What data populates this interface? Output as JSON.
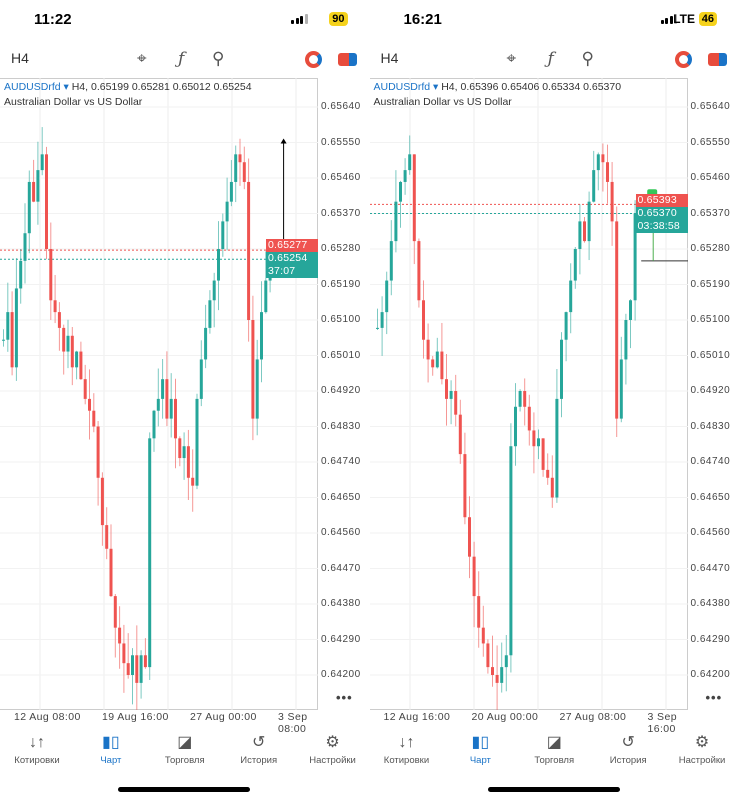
{
  "phones": [
    {
      "status": {
        "time": "11:22",
        "network": "",
        "battery": "90"
      },
      "toolbar": {
        "timeframe": "H4"
      },
      "legend": {
        "symbol": "AUDUSDrfd",
        "caret": "▾",
        "ohlc": "H4, 0.65199 0.65281 0.65012 0.65254",
        "description": "Australian Dollar vs US Dollar"
      },
      "price_axis": [
        "0.65640",
        "0.65550",
        "0.65460",
        "0.65370",
        "0.65280",
        "0.65190",
        "0.65100",
        "0.65010",
        "0.64920",
        "0.64830",
        "0.64740",
        "0.64650",
        "0.64560",
        "0.64470",
        "0.64380",
        "0.64290",
        "0.64200"
      ],
      "ask_label": "0.65277",
      "bid_label": "0.65254",
      "countdown": "37:07",
      "time_axis": [
        "12 Aug 08:00",
        "19 Aug 16:00",
        "27 Aug 00:00",
        "3 Sep 08:00"
      ],
      "more": "•••",
      "chart_data": {
        "type": "candlestick",
        "ask": 0.65277,
        "bid": 0.65254,
        "ylim": [
          0.6416,
          0.6568
        ],
        "closes": [
          0.6505,
          0.6512,
          0.6498,
          0.6518,
          0.6525,
          0.6532,
          0.6545,
          0.654,
          0.6548,
          0.6552,
          0.6528,
          0.6515,
          0.6512,
          0.6508,
          0.6502,
          0.6506,
          0.6498,
          0.6502,
          0.6495,
          0.649,
          0.6487,
          0.6483,
          0.647,
          0.6458,
          0.6452,
          0.644,
          0.6432,
          0.6428,
          0.6423,
          0.642,
          0.6425,
          0.6418,
          0.6425,
          0.6422,
          0.648,
          0.6487,
          0.649,
          0.6495,
          0.6485,
          0.649,
          0.648,
          0.6475,
          0.6478,
          0.647,
          0.6468,
          0.649,
          0.65,
          0.6508,
          0.6515,
          0.652,
          0.6528,
          0.6535,
          0.654,
          0.6545,
          0.6552,
          0.655,
          0.6545,
          0.651,
          0.6485,
          0.65,
          0.6512,
          0.652,
          0.65254
        ],
        "trade_arrow": {
          "from": 0.65254,
          "to": 0.6556
        }
      }
    },
    {
      "status": {
        "time": "16:21",
        "network": "LTE",
        "battery": "46"
      },
      "toolbar": {
        "timeframe": "H4"
      },
      "legend": {
        "symbol": "AUDUSDrfd",
        "caret": "▾",
        "ohlc": "H4, 0.65396 0.65406 0.65334 0.65370",
        "description": "Australian Dollar vs US Dollar"
      },
      "price_axis": [
        "0.65640",
        "0.65550",
        "0.65460",
        "0.65370",
        "0.65280",
        "0.65190",
        "0.65100",
        "0.65010",
        "0.64920",
        "0.64830",
        "0.64740",
        "0.64650",
        "0.64560",
        "0.64470",
        "0.64380",
        "0.64290",
        "0.64200"
      ],
      "ask_label": "0.65393",
      "bid_label": "0.65370",
      "countdown": "03:38:58",
      "time_axis": [
        "12 Aug 16:00",
        "20 Aug 00:00",
        "27 Aug 08:00",
        "3 Sep 16:00"
      ],
      "more": "•••",
      "chart_data": {
        "type": "candlestick",
        "ask": 0.65393,
        "bid": 0.6537,
        "ylim": [
          0.6416,
          0.6568
        ],
        "closes": [
          0.6508,
          0.6512,
          0.652,
          0.653,
          0.654,
          0.6545,
          0.6548,
          0.6552,
          0.653,
          0.6515,
          0.6505,
          0.65,
          0.6498,
          0.6502,
          0.6495,
          0.649,
          0.6492,
          0.6486,
          0.6476,
          0.646,
          0.645,
          0.644,
          0.6432,
          0.6428,
          0.6422,
          0.642,
          0.6418,
          0.6422,
          0.6425,
          0.6478,
          0.6488,
          0.6492,
          0.6488,
          0.6482,
          0.6478,
          0.648,
          0.6472,
          0.647,
          0.6465,
          0.649,
          0.6505,
          0.6512,
          0.652,
          0.6528,
          0.6535,
          0.653,
          0.654,
          0.6548,
          0.6552,
          0.655,
          0.6545,
          0.6535,
          0.6485,
          0.65,
          0.651,
          0.6515,
          0.6537,
          0.6537
        ],
        "trade_arrow": {
          "from": 0.6525,
          "to": 0.6538
        }
      }
    }
  ],
  "tabs": [
    {
      "label": "Котировки",
      "icon": "quotes-arrows-icon"
    },
    {
      "label": "Чарт",
      "icon": "candles-icon"
    },
    {
      "label": "Торговля",
      "icon": "trade-chart-icon"
    },
    {
      "label": "История",
      "icon": "history-clock-icon"
    },
    {
      "label": "Настройки",
      "icon": "gear-icon"
    }
  ],
  "colors": {
    "up": "#26a69a",
    "down": "#ef5350",
    "accent": "#1a73c7"
  }
}
